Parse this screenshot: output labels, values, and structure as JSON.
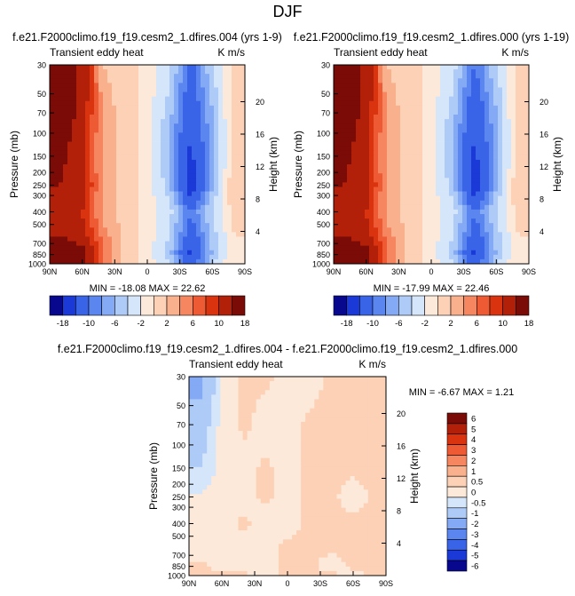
{
  "figure": {
    "title": "DJF"
  },
  "palettes": {
    "main": [
      "#08088e",
      "#1a39d6",
      "#3a64e8",
      "#5b86ef",
      "#84a9f5",
      "#aecbf8",
      "#d5e6fb",
      "#fde9da",
      "#fcd1b6",
      "#f9b08c",
      "#f58660",
      "#ee5a33",
      "#d9340f",
      "#b2200a",
      "#7a0b07"
    ],
    "diff": [
      "#08088e",
      "#1a39d6",
      "#3a64e8",
      "#5b86ef",
      "#84a9f5",
      "#aecbf8",
      "#d5e6fb",
      "#fde9da",
      "#fcd1b6",
      "#f9b08c",
      "#f58660",
      "#ee5a33",
      "#d9340f",
      "#b2200a",
      "#7a0b07"
    ]
  },
  "panels": [
    {
      "run_title": "f.e21.F2000climo.f19_f19.cesm2_1.dfires.004 (yrs 1-9)",
      "left_label": "Transient eddy heat",
      "units": "K m/s",
      "stats": "MIN = -18.08  MAX = 22.62",
      "colorbar": {
        "labels": [
          "-18",
          "-10",
          "-6",
          "-2",
          "2",
          "6",
          "10",
          "18"
        ]
      }
    },
    {
      "run_title": "f.e21.F2000climo.f19_f19.cesm2_1.dfires.000 (yrs 1-19)",
      "left_label": "Transient eddy heat",
      "units": "K m/s",
      "stats": "MIN = -17.99  MAX = 22.46",
      "colorbar": {
        "labels": [
          "-18",
          "-10",
          "-6",
          "-2",
          "2",
          "6",
          "10",
          "18"
        ]
      }
    },
    {
      "run_title": "f.e21.F2000climo.f19_f19.cesm2_1.dfires.004 - f.e21.F2000climo.f19_f19.cesm2_1.dfires.000",
      "left_label": "Transient eddy heat",
      "units": "K m/s",
      "stats": "MIN = -6.67  MAX =  1.21",
      "colorbar": {
        "labels": [
          "6",
          "5",
          "4",
          "3",
          "2",
          "1",
          "0.5",
          "0",
          "-0.5",
          "-1",
          "-2",
          "-3",
          "-4",
          "-5",
          "-6"
        ]
      }
    }
  ],
  "axes": {
    "y_label": "Pressure (mb)",
    "y2_label": "Height (km)",
    "pressure_ticks": [
      "30",
      "50",
      "70",
      "100",
      "150",
      "200",
      "250",
      "300",
      "400",
      "500",
      "700",
      "850",
      "1000"
    ],
    "height_ticks": [
      "20",
      "16",
      "12",
      "8",
      "4"
    ],
    "lat_ticks": [
      "90N",
      "60N",
      "30N",
      "0",
      "30S",
      "60S",
      "90S"
    ]
  },
  "chart_data": [
    {
      "type": "heatmap",
      "title": "f.e21.F2000climo.f19_f19.cesm2_1.dfires.004 (yrs 1-9)",
      "variable": "Transient eddy heat",
      "units": "K m/s",
      "x": [
        80,
        60,
        40,
        20,
        0,
        -20,
        -40,
        -60,
        -80
      ],
      "x_label_ticks": [
        "90N",
        "60N",
        "30N",
        "0",
        "30S",
        "60S",
        "90S"
      ],
      "y": [
        30,
        70,
        150,
        250,
        400,
        600,
        850,
        1000
      ],
      "ylabel": "Pressure (mb)",
      "y2label": "Height (km)",
      "ylim": [
        1000,
        30
      ],
      "y_scale": "log",
      "z": [
        [
          19,
          13,
          2,
          1,
          -1,
          -3,
          -11,
          -4,
          1
        ],
        [
          18,
          12,
          3,
          1,
          -1,
          -5,
          -13,
          -6,
          1
        ],
        [
          15,
          11,
          3,
          1,
          -1,
          -6,
          -15,
          -7,
          1
        ],
        [
          14,
          12,
          3,
          1,
          -1,
          -5,
          -17,
          -6,
          2
        ],
        [
          12,
          10,
          3,
          1,
          -1,
          -3,
          -10,
          -4,
          1
        ],
        [
          14,
          11,
          5,
          1,
          -1,
          -4,
          -12,
          -5,
          0
        ],
        [
          18,
          16,
          6,
          1,
          -1,
          -5,
          -15,
          -6,
          0
        ],
        [
          21,
          15,
          5,
          1,
          -1,
          -4,
          -12,
          -4,
          0
        ]
      ],
      "min": -18.08,
      "max": 22.62,
      "contour_levels": [
        -18,
        -14,
        -10,
        -8,
        -6,
        -4,
        -2,
        0,
        2,
        4,
        6,
        8,
        10,
        14,
        18
      ],
      "colorbar_labels": [
        "-18",
        "-10",
        "-6",
        "-2",
        "2",
        "6",
        "10",
        "18"
      ]
    },
    {
      "type": "heatmap",
      "title": "f.e21.F2000climo.f19_f19.cesm2_1.dfires.000 (yrs 1-19)",
      "variable": "Transient eddy heat",
      "units": "K m/s",
      "x": [
        80,
        60,
        40,
        20,
        0,
        -20,
        -40,
        -60,
        -80
      ],
      "x_label_ticks": [
        "90N",
        "60N",
        "30N",
        "0",
        "30S",
        "60S",
        "90S"
      ],
      "y": [
        30,
        70,
        150,
        250,
        400,
        600,
        850,
        1000
      ],
      "ylabel": "Pressure (mb)",
      "y2label": "Height (km)",
      "ylim": [
        1000,
        30
      ],
      "y_scale": "log",
      "z": [
        [
          19,
          13,
          2,
          1,
          -1,
          -3,
          -10,
          -4,
          1
        ],
        [
          18,
          12,
          3,
          1,
          -1,
          -5,
          -13,
          -6,
          1
        ],
        [
          15,
          11,
          3,
          1,
          -1,
          -6,
          -15,
          -7,
          1
        ],
        [
          14,
          12,
          3,
          1,
          -1,
          -5,
          -17,
          -6,
          2
        ],
        [
          12,
          10,
          3,
          1,
          -1,
          -3,
          -10,
          -4,
          1
        ],
        [
          14,
          11,
          5,
          1,
          -1,
          -4,
          -12,
          -5,
          0
        ],
        [
          18,
          16,
          6,
          1,
          -1,
          -5,
          -15,
          -6,
          0
        ],
        [
          21,
          15,
          5,
          1,
          -1,
          -4,
          -12,
          -4,
          0
        ]
      ],
      "min": -17.99,
      "max": 22.46,
      "contour_levels": [
        -18,
        -14,
        -10,
        -8,
        -6,
        -4,
        -2,
        0,
        2,
        4,
        6,
        8,
        10,
        14,
        18
      ],
      "colorbar_labels": [
        "-18",
        "-10",
        "-6",
        "-2",
        "2",
        "6",
        "10",
        "18"
      ]
    },
    {
      "type": "heatmap",
      "title": "f.e21.F2000climo.f19_f19.cesm2_1.dfires.004 - f.e21.F2000climo.f19_f19.cesm2_1.dfires.000",
      "variable": "Transient eddy heat",
      "units": "K m/s",
      "x": [
        80,
        60,
        40,
        20,
        0,
        -20,
        -40,
        -60,
        -80
      ],
      "x_label_ticks": [
        "90N",
        "60N",
        "30N",
        "0",
        "30S",
        "60S",
        "90S"
      ],
      "y": [
        30,
        70,
        150,
        250,
        400,
        600,
        850,
        1000
      ],
      "ylabel": "Pressure (mb)",
      "y2label": "Height (km)",
      "ylim": [
        1000,
        30
      ],
      "y_scale": "log",
      "z": [
        [
          -2.5,
          -0.3,
          0.1,
          0.1,
          -0.2,
          -0.2,
          0.1,
          0.1,
          0.1
        ],
        [
          -1.5,
          -0.3,
          0.1,
          -0.2,
          -0.2,
          0.1,
          0.1,
          0.1,
          0.1
        ],
        [
          -1.0,
          -0.3,
          -0.2,
          0.1,
          -0.2,
          0.1,
          0.1,
          0.1,
          0.1
        ],
        [
          -0.4,
          -0.2,
          -0.2,
          0.1,
          -0.2,
          0.1,
          0.1,
          -0.2,
          0.1
        ],
        [
          -0.2,
          -0.2,
          0.1,
          -0.2,
          -0.2,
          0.1,
          0.1,
          0.1,
          0.1
        ],
        [
          -0.2,
          -0.2,
          -0.2,
          -0.2,
          0.1,
          0.1,
          0.1,
          0.1,
          0.1
        ],
        [
          0.1,
          -0.2,
          -0.2,
          -0.2,
          0.1,
          0.1,
          -0.2,
          0.1,
          0.1
        ],
        [
          0.1,
          0.1,
          0.1,
          -0.2,
          0.1,
          0.1,
          0.1,
          -0.2,
          0.1
        ]
      ],
      "min": -6.67,
      "max": 1.21,
      "contour_levels": [
        -6,
        -5,
        -4,
        -3,
        -2,
        -1,
        -0.5,
        0,
        0.5,
        1,
        2,
        3,
        4,
        5,
        6
      ],
      "colorbar_labels": [
        "6",
        "5",
        "4",
        "3",
        "2",
        "1",
        "0.5",
        "0",
        "-0.5",
        "-1",
        "-2",
        "-3",
        "-4",
        "-5",
        "-6"
      ]
    }
  ]
}
